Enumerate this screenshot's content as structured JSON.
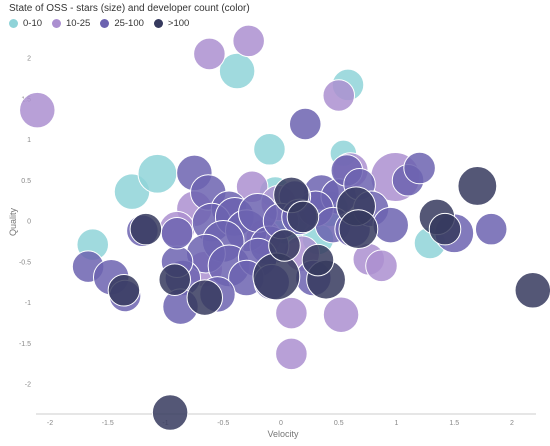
{
  "chart_data": {
    "type": "scatter",
    "title": "State of OSS - stars (size) and developer count (color)",
    "xlabel": "Velocity",
    "ylabel": "Quality",
    "xlim": [
      -2.1,
      2.3
    ],
    "ylim": [
      -2.4,
      2.35
    ],
    "xticks": [
      -2,
      -1.5,
      -1,
      -0.5,
      0,
      0.5,
      1,
      1.5,
      2
    ],
    "xtick_labels": [
      "-2",
      "-1.5",
      "-1",
      "-0.5",
      "0",
      "0.5",
      "1",
      "1.5",
      "2"
    ],
    "yticks": [
      2,
      1.5,
      1,
      0.5,
      0,
      -0.5,
      -1,
      -1.5,
      -2
    ],
    "ytick_labels": [
      "2",
      "1.5",
      "1",
      "0.5",
      "0",
      "-0.5",
      "-1",
      "-1.5",
      "-2"
    ],
    "legend": {
      "placement": "top-left",
      "entries": [
        {
          "label": "0-10",
          "color": "#8fd3d8"
        },
        {
          "label": "10-25",
          "color": "#ab8fd0"
        },
        {
          "label": "25-100",
          "color": "#6c63b0"
        },
        {
          "label": ">100",
          "color": "#363a5e"
        }
      ]
    },
    "series": [
      {
        "name": "0-10",
        "color": "#8fd3d8",
        "points": [
          {
            "x": -0.38,
            "y": 1.84,
            "stars": 3
          },
          {
            "x": 0.58,
            "y": 1.67,
            "stars": 2
          },
          {
            "x": -0.1,
            "y": 0.88,
            "stars": 2
          },
          {
            "x": 0.54,
            "y": 0.83,
            "stars": 1
          },
          {
            "x": -1.29,
            "y": 0.36,
            "stars": 3
          },
          {
            "x": -1.07,
            "y": 0.58,
            "stars": 4
          },
          {
            "x": -1.63,
            "y": -0.29,
            "stars": 2
          },
          {
            "x": 0.05,
            "y": -0.03,
            "stars": 5
          },
          {
            "x": 0.32,
            "y": -0.22,
            "stars": 2
          },
          {
            "x": 1.29,
            "y": -0.27,
            "stars": 2
          },
          {
            "x": -0.05,
            "y": 0.35,
            "stars": 2
          },
          {
            "x": 0.43,
            "y": 0.15,
            "stars": 3
          }
        ]
      },
      {
        "name": "10-25",
        "color": "#ab8fd0",
        "points": [
          {
            "x": -0.62,
            "y": 2.05,
            "stars": 2
          },
          {
            "x": -0.28,
            "y": 2.21,
            "stars": 2
          },
          {
            "x": 0.5,
            "y": 1.54,
            "stars": 2
          },
          {
            "x": -2.11,
            "y": 1.36,
            "stars": 3
          },
          {
            "x": 0.99,
            "y": 0.54,
            "stars": 8
          },
          {
            "x": -0.25,
            "y": 0.42,
            "stars": 2
          },
          {
            "x": 0.09,
            "y": -1.13,
            "stars": 2
          },
          {
            "x": 0.09,
            "y": -1.63,
            "stars": 2
          },
          {
            "x": 0.52,
            "y": -1.15,
            "stars": 3
          },
          {
            "x": 0.76,
            "y": -0.47,
            "stars": 2
          },
          {
            "x": 0.87,
            "y": -0.55,
            "stars": 2
          },
          {
            "x": -0.15,
            "y": -0.2,
            "stars": 3
          },
          {
            "x": -0.66,
            "y": -0.59,
            "stars": 3
          },
          {
            "x": -0.75,
            "y": 0.15,
            "stars": 3
          },
          {
            "x": -0.02,
            "y": 0.22,
            "stars": 3
          },
          {
            "x": 0.6,
            "y": 0.62,
            "stars": 3
          },
          {
            "x": -0.9,
            "y": -0.1,
            "stars": 3
          },
          {
            "x": 0.18,
            "y": -0.4,
            "stars": 3
          },
          {
            "x": -0.45,
            "y": 0.1,
            "stars": 2
          }
        ]
      },
      {
        "name": "25-100",
        "color": "#6c63b0",
        "points": [
          {
            "x": 0.21,
            "y": 1.19,
            "stars": 2
          },
          {
            "x": -0.75,
            "y": 0.59,
            "stars": 3
          },
          {
            "x": -0.63,
            "y": 0.35,
            "stars": 3
          },
          {
            "x": -0.45,
            "y": 0.15,
            "stars": 3
          },
          {
            "x": -0.6,
            "y": -0.02,
            "stars": 4
          },
          {
            "x": -0.4,
            "y": 0.05,
            "stars": 4
          },
          {
            "x": -0.3,
            "y": -0.12,
            "stars": 5
          },
          {
            "x": -0.2,
            "y": 0.1,
            "stars": 4
          },
          {
            "x": -0.1,
            "y": -0.3,
            "stars": 4
          },
          {
            "x": -0.5,
            "y": -0.25,
            "stars": 5
          },
          {
            "x": -0.65,
            "y": -0.4,
            "stars": 4
          },
          {
            "x": -0.45,
            "y": -0.55,
            "stars": 5
          },
          {
            "x": -0.2,
            "y": -0.45,
            "stars": 4
          },
          {
            "x": -0.3,
            "y": -0.7,
            "stars": 3
          },
          {
            "x": -0.55,
            "y": -0.9,
            "stars": 3
          },
          {
            "x": -0.85,
            "y": -0.7,
            "stars": 3
          },
          {
            "x": -0.9,
            "y": -0.5,
            "stars": 2
          },
          {
            "x": -0.87,
            "y": -1.05,
            "stars": 3
          },
          {
            "x": -0.08,
            "y": -0.75,
            "stars": 3
          },
          {
            "x": 0.28,
            "y": -0.7,
            "stars": 3
          },
          {
            "x": 0.35,
            "y": 0.35,
            "stars": 3
          },
          {
            "x": 0.5,
            "y": 0.3,
            "stars": 3
          },
          {
            "x": 0.57,
            "y": 0.62,
            "stars": 2
          },
          {
            "x": 0.68,
            "y": 0.45,
            "stars": 2
          },
          {
            "x": 0.3,
            "y": 0.15,
            "stars": 3
          },
          {
            "x": 0.45,
            "y": -0.05,
            "stars": 3
          },
          {
            "x": 0.62,
            "y": -0.1,
            "stars": 3
          },
          {
            "x": 0.78,
            "y": 0.15,
            "stars": 3
          },
          {
            "x": 0.95,
            "y": -0.05,
            "stars": 3
          },
          {
            "x": 1.1,
            "y": 0.5,
            "stars": 2
          },
          {
            "x": 1.2,
            "y": 0.65,
            "stars": 2
          },
          {
            "x": 1.5,
            "y": -0.15,
            "stars": 4
          },
          {
            "x": 1.82,
            "y": -0.1,
            "stars": 2
          },
          {
            "x": -1.67,
            "y": -0.56,
            "stars": 2
          },
          {
            "x": -1.47,
            "y": -0.69,
            "stars": 3
          },
          {
            "x": -1.35,
            "y": -0.92,
            "stars": 2
          },
          {
            "x": -1.2,
            "y": -0.12,
            "stars": 2
          },
          {
            "x": -0.9,
            "y": -0.15,
            "stars": 2
          },
          {
            "x": 0.12,
            "y": 0.3,
            "stars": 2
          },
          {
            "x": 0.0,
            "y": 0.0,
            "stars": 3
          },
          {
            "x": 0.16,
            "y": 0.05,
            "stars": 3
          }
        ]
      },
      {
        "name": ">100",
        "color": "#363a5e",
        "points": [
          {
            "x": -1.17,
            "y": -0.1,
            "stars": 2
          },
          {
            "x": -1.36,
            "y": -0.85,
            "stars": 2
          },
          {
            "x": -0.92,
            "y": -0.72,
            "stars": 2
          },
          {
            "x": -0.66,
            "y": -0.94,
            "stars": 3
          },
          {
            "x": -0.96,
            "y": -2.35,
            "stars": 3
          },
          {
            "x": -0.04,
            "y": -0.68,
            "stars": 7
          },
          {
            "x": 0.39,
            "y": -0.72,
            "stars": 4
          },
          {
            "x": 0.32,
            "y": -0.48,
            "stars": 2
          },
          {
            "x": 0.03,
            "y": -0.3,
            "stars": 2
          },
          {
            "x": 0.09,
            "y": 0.32,
            "stars": 3
          },
          {
            "x": 0.19,
            "y": 0.05,
            "stars": 2
          },
          {
            "x": 0.65,
            "y": 0.18,
            "stars": 4
          },
          {
            "x": 0.67,
            "y": -0.1,
            "stars": 4
          },
          {
            "x": 1.35,
            "y": 0.05,
            "stars": 3
          },
          {
            "x": 1.42,
            "y": -0.1,
            "stars": 2
          },
          {
            "x": 1.7,
            "y": 0.43,
            "stars": 4
          },
          {
            "x": 2.18,
            "y": -0.85,
            "stars": 3
          }
        ]
      }
    ]
  }
}
